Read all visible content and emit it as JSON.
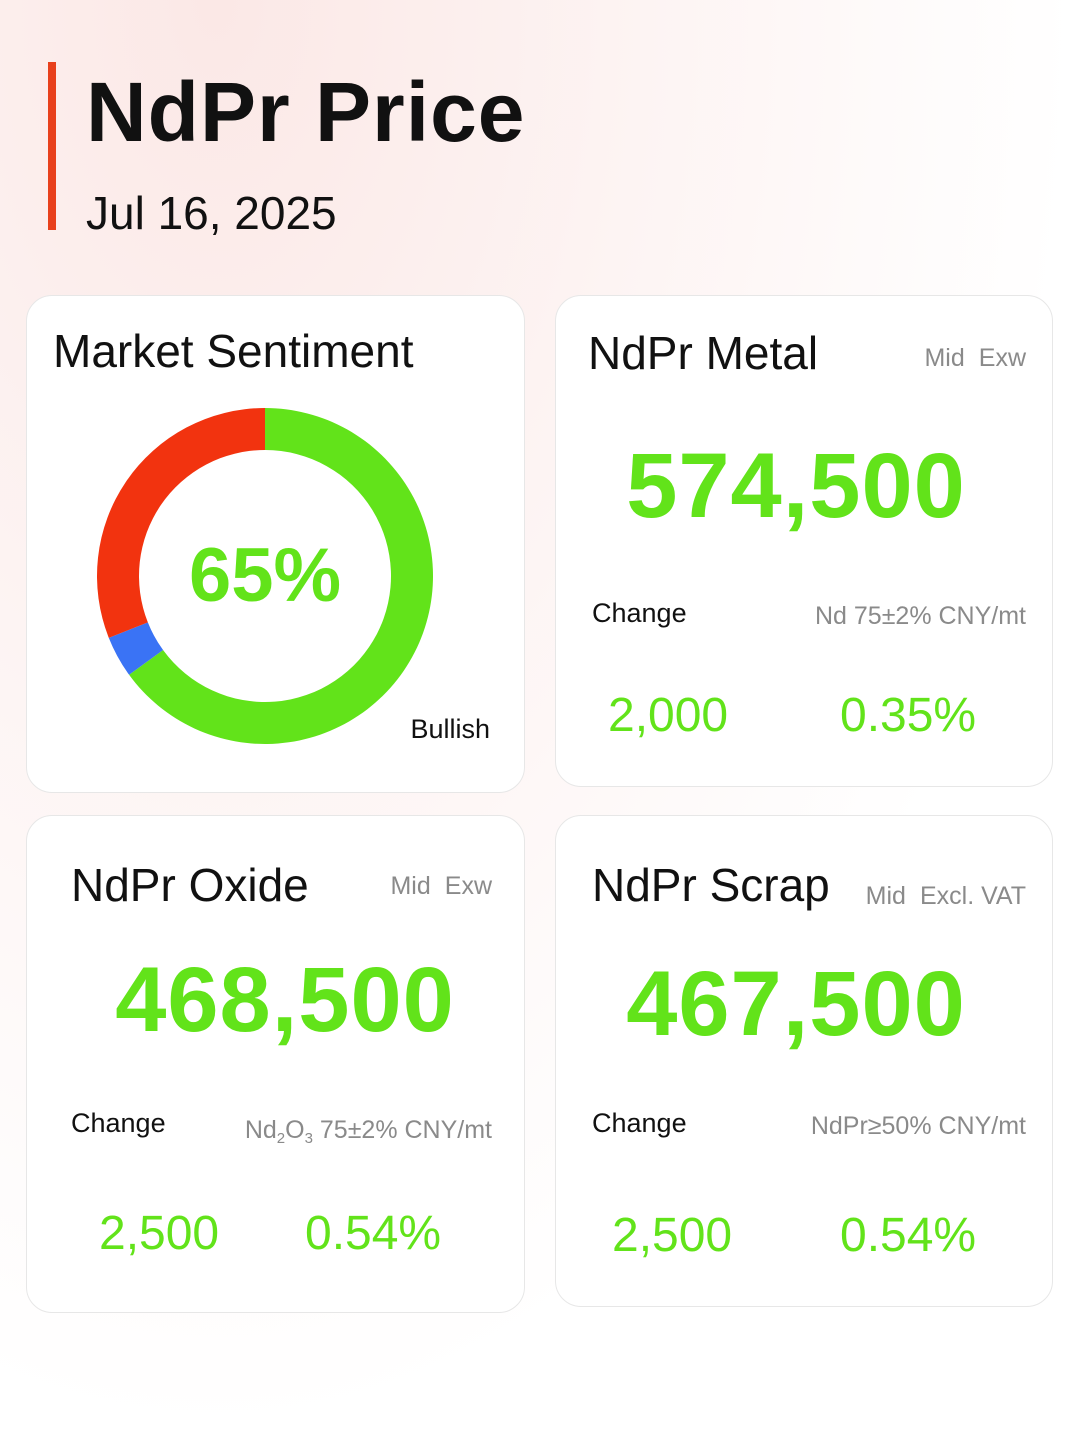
{
  "header": {
    "title": "NdPr Price",
    "date": "Jul 16, 2025"
  },
  "colors": {
    "accent": "#e8401c",
    "positive": "#62e31a",
    "bearish": "#f2330f",
    "neutral": "#3a73f5"
  },
  "sentiment": {
    "title": "Market Sentiment",
    "percent_label": "65%",
    "label": "Bullish",
    "segments": [
      {
        "name": "bullish",
        "fraction": 0.65,
        "color": "#62e31a"
      },
      {
        "name": "neutral",
        "fraction": 0.04,
        "color": "#3a73f5"
      },
      {
        "name": "bearish",
        "fraction": 0.31,
        "color": "#f2330f"
      }
    ]
  },
  "metal": {
    "title": "NdPr Metal",
    "meta1": "Mid",
    "meta2": "Exw",
    "price": "574,500",
    "change_label": "Change",
    "spec": "Nd 75±2% CNY/mt",
    "change_abs": "2,000",
    "change_pct": "0.35%"
  },
  "oxide": {
    "title": "NdPr Oxide",
    "meta1": "Mid",
    "meta2": "Exw",
    "price": "468,500",
    "change_label": "Change",
    "spec_a": "Nd",
    "spec_sub1": "2",
    "spec_b": "O",
    "spec_sub2": "3",
    "spec_c": " 75±2% CNY/mt",
    "change_abs": "2,500",
    "change_pct": "0.54%"
  },
  "scrap": {
    "title": "NdPr Scrap",
    "meta1": "Mid",
    "meta2": "Excl. VAT",
    "price": "467,500",
    "change_label": "Change",
    "spec": "NdPr≥50% CNY/mt",
    "change_abs": "2,500",
    "change_pct": "0.54%"
  }
}
